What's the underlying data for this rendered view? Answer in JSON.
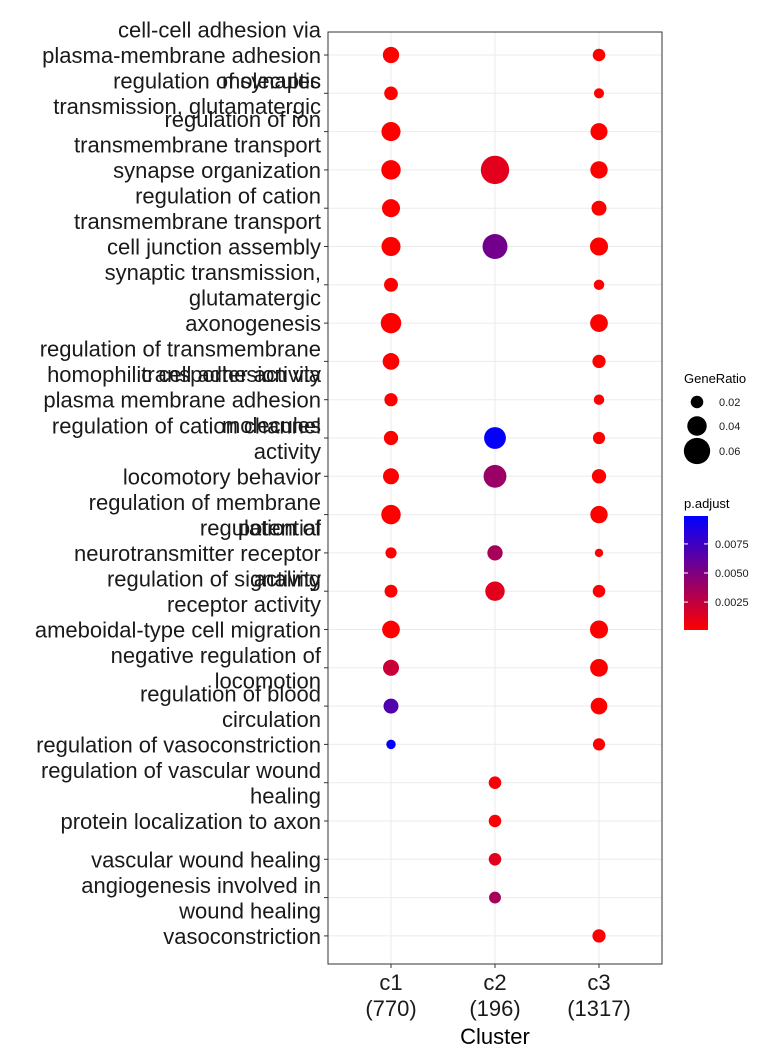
{
  "chart_data": {
    "type": "dot",
    "xlabel": "Cluster",
    "ylabel": "",
    "clusters": [
      {
        "name": "c1",
        "count": "(770)"
      },
      {
        "name": "c2",
        "count": "(196)"
      },
      {
        "name": "c3",
        "count": "(1317)"
      }
    ],
    "terms": [
      [
        "cell-cell adhesion via",
        "plasma-membrane adhesion",
        "molecules"
      ],
      [
        "regulation of synaptic",
        "transmission, glutamatergic"
      ],
      [
        "regulation of ion",
        "transmembrane transport"
      ],
      [
        "synapse organization"
      ],
      [
        "regulation of cation",
        "transmembrane transport"
      ],
      [
        "cell junction assembly"
      ],
      [
        "synaptic transmission,",
        "glutamatergic"
      ],
      [
        "axonogenesis"
      ],
      [
        "regulation of transmembrane",
        "transporter activity"
      ],
      [
        "homophilic cell adhesion via",
        "plasma membrane adhesion",
        "molecules"
      ],
      [
        "regulation of cation channel",
        "activity"
      ],
      [
        "locomotory behavior"
      ],
      [
        "regulation of membrane",
        "potential"
      ],
      [
        "regulation of",
        "neurotransmitter receptor",
        "activity"
      ],
      [
        "regulation of signaling",
        "receptor activity"
      ],
      [
        "ameboidal-type cell migration"
      ],
      [
        "negative regulation of",
        "locomotion"
      ],
      [
        "regulation of blood",
        "circulation"
      ],
      [
        "regulation of vasoconstriction"
      ],
      [
        "regulation of vascular wound",
        "healing"
      ],
      [
        "protein localization to axon"
      ],
      [
        "vascular wound healing"
      ],
      [
        "angiogenesis involved in",
        "wound healing"
      ],
      [
        "vasoconstriction"
      ]
    ],
    "points": [
      {
        "term": 0,
        "cluster": "c1",
        "gene_ratio": 0.031,
        "p_adjust": 0.0001
      },
      {
        "term": 0,
        "cluster": "c3",
        "gene_ratio": 0.02,
        "p_adjust": 0.0001
      },
      {
        "term": 1,
        "cluster": "c1",
        "gene_ratio": 0.023,
        "p_adjust": 0.0001
      },
      {
        "term": 1,
        "cluster": "c3",
        "gene_ratio": 0.013,
        "p_adjust": 0.0001
      },
      {
        "term": 2,
        "cluster": "c1",
        "gene_ratio": 0.039,
        "p_adjust": 0.0001
      },
      {
        "term": 2,
        "cluster": "c3",
        "gene_ratio": 0.033,
        "p_adjust": 0.0001
      },
      {
        "term": 3,
        "cluster": "c1",
        "gene_ratio": 0.04,
        "p_adjust": 0.0001
      },
      {
        "term": 3,
        "cluster": "c2",
        "gene_ratio": 0.066,
        "p_adjust": 0.0012
      },
      {
        "term": 3,
        "cluster": "c3",
        "gene_ratio": 0.034,
        "p_adjust": 0.0001
      },
      {
        "term": 4,
        "cluster": "c1",
        "gene_ratio": 0.036,
        "p_adjust": 0.0001
      },
      {
        "term": 4,
        "cluster": "c3",
        "gene_ratio": 0.027,
        "p_adjust": 0.0001
      },
      {
        "term": 5,
        "cluster": "c1",
        "gene_ratio": 0.039,
        "p_adjust": 0.0001
      },
      {
        "term": 5,
        "cluster": "c2",
        "gene_ratio": 0.056,
        "p_adjust": 0.0055
      },
      {
        "term": 5,
        "cluster": "c3",
        "gene_ratio": 0.036,
        "p_adjust": 0.0001
      },
      {
        "term": 6,
        "cluster": "c1",
        "gene_ratio": 0.024,
        "p_adjust": 0.0001
      },
      {
        "term": 6,
        "cluster": "c3",
        "gene_ratio": 0.014,
        "p_adjust": 0.0001
      },
      {
        "term": 7,
        "cluster": "c1",
        "gene_ratio": 0.043,
        "p_adjust": 0.0001
      },
      {
        "term": 7,
        "cluster": "c3",
        "gene_ratio": 0.035,
        "p_adjust": 0.0001
      },
      {
        "term": 8,
        "cluster": "c1",
        "gene_ratio": 0.032,
        "p_adjust": 0.0001
      },
      {
        "term": 8,
        "cluster": "c3",
        "gene_ratio": 0.022,
        "p_adjust": 0.0001
      },
      {
        "term": 9,
        "cluster": "c1",
        "gene_ratio": 0.022,
        "p_adjust": 0.0001
      },
      {
        "term": 9,
        "cluster": "c3",
        "gene_ratio": 0.014,
        "p_adjust": 0.0001
      },
      {
        "term": 10,
        "cluster": "c1",
        "gene_ratio": 0.025,
        "p_adjust": 0.0001
      },
      {
        "term": 10,
        "cluster": "c2",
        "gene_ratio": 0.047,
        "p_adjust": 0.0097
      },
      {
        "term": 10,
        "cluster": "c3",
        "gene_ratio": 0.019,
        "p_adjust": 0.0001
      },
      {
        "term": 11,
        "cluster": "c1",
        "gene_ratio": 0.03,
        "p_adjust": 0.0001
      },
      {
        "term": 11,
        "cluster": "c2",
        "gene_ratio": 0.05,
        "p_adjust": 0.004
      },
      {
        "term": 11,
        "cluster": "c3",
        "gene_ratio": 0.025,
        "p_adjust": 0.0001
      },
      {
        "term": 12,
        "cluster": "c1",
        "gene_ratio": 0.04,
        "p_adjust": 0.0001
      },
      {
        "term": 12,
        "cluster": "c3",
        "gene_ratio": 0.034,
        "p_adjust": 0.0001
      },
      {
        "term": 13,
        "cluster": "c1",
        "gene_ratio": 0.016,
        "p_adjust": 0.0001
      },
      {
        "term": 13,
        "cluster": "c2",
        "gene_ratio": 0.028,
        "p_adjust": 0.0035
      },
      {
        "term": 13,
        "cluster": "c3",
        "gene_ratio": 0.008,
        "p_adjust": 0.0001
      },
      {
        "term": 14,
        "cluster": "c1",
        "gene_ratio": 0.021,
        "p_adjust": 0.0001
      },
      {
        "term": 14,
        "cluster": "c2",
        "gene_ratio": 0.04,
        "p_adjust": 0.0012
      },
      {
        "term": 14,
        "cluster": "c3",
        "gene_ratio": 0.02,
        "p_adjust": 0.0001
      },
      {
        "term": 15,
        "cluster": "c1",
        "gene_ratio": 0.035,
        "p_adjust": 0.0001
      },
      {
        "term": 15,
        "cluster": "c3",
        "gene_ratio": 0.036,
        "p_adjust": 0.0001
      },
      {
        "term": 16,
        "cluster": "c1",
        "gene_ratio": 0.03,
        "p_adjust": 0.0022
      },
      {
        "term": 16,
        "cluster": "c3",
        "gene_ratio": 0.035,
        "p_adjust": 0.0001
      },
      {
        "term": 17,
        "cluster": "c1",
        "gene_ratio": 0.027,
        "p_adjust": 0.0068
      },
      {
        "term": 17,
        "cluster": "c3",
        "gene_ratio": 0.032,
        "p_adjust": 0.0001
      },
      {
        "term": 18,
        "cluster": "c1",
        "gene_ratio": 0.011,
        "p_adjust": 0.0097
      },
      {
        "term": 18,
        "cluster": "c3",
        "gene_ratio": 0.019,
        "p_adjust": 0.0001
      },
      {
        "term": 19,
        "cluster": "c2",
        "gene_ratio": 0.02,
        "p_adjust": 0.0003
      },
      {
        "term": 20,
        "cluster": "c2",
        "gene_ratio": 0.02,
        "p_adjust": 0.0003
      },
      {
        "term": 21,
        "cluster": "c2",
        "gene_ratio": 0.02,
        "p_adjust": 0.0012
      },
      {
        "term": 22,
        "cluster": "c2",
        "gene_ratio": 0.018,
        "p_adjust": 0.0035
      },
      {
        "term": 23,
        "cluster": "c3",
        "gene_ratio": 0.022,
        "p_adjust": 0.0001
      }
    ],
    "legend_size": {
      "title": "GeneRatio",
      "values": [
        0.02,
        0.04,
        0.06
      ],
      "labels": [
        "0.02",
        "0.04",
        "0.06"
      ]
    },
    "legend_color": {
      "title": "p.adjust",
      "range": [
        0.0001,
        0.0099
      ],
      "ticks": [
        0.0075,
        0.005,
        0.0025
      ],
      "labels": [
        "0.0075",
        "0.0050",
        "0.0025"
      ],
      "low_color": "#ff0000",
      "high_color": "#0000ff"
    },
    "grid": true
  }
}
